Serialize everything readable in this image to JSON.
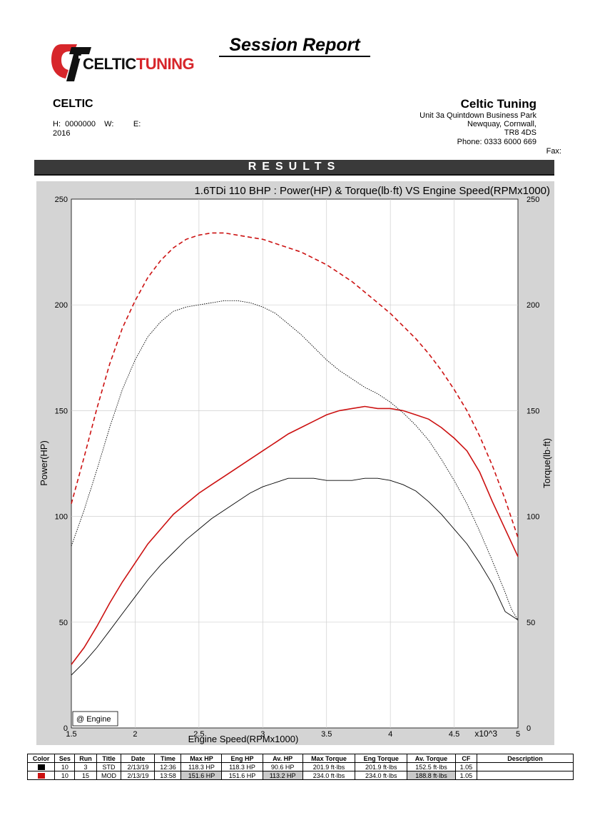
{
  "report_title": "Session Report",
  "logo": {
    "part1": "CELTIC",
    "part2": "TUNING"
  },
  "customer": {
    "name": "CELTIC",
    "line1": "H:  0000000    W:         E:",
    "line2": "2016"
  },
  "company": {
    "name": "Celtic Tuning",
    "address1": "Unit 3a Quintdown Business Park",
    "address2": "Newquay, Cornwall,",
    "postcode": "TR8 4DS",
    "phone": "Phone: 0333 6000 669",
    "fax": "Fax:"
  },
  "results_banner": "RESULTS",
  "chart_data": {
    "type": "line",
    "title": "1.6TDi 110 BHP : Power(HP) & Torque(lb·ft) VS Engine Speed(RPMx1000)",
    "xlabel": "Engine Speed(RPMx1000)",
    "ylabel_left": "Power(HP)",
    "ylabel_right": "Torque(lb·ft)",
    "x_multiplier": "x10^3",
    "xlim": [
      1.5,
      5
    ],
    "ylim": [
      0,
      250
    ],
    "x_ticks": [
      "1.5",
      "2",
      "2.5",
      "3",
      "3.5",
      "4",
      "4.5",
      "5"
    ],
    "y_ticks": [
      "0",
      "50",
      "100",
      "150",
      "200",
      "250"
    ],
    "grid": true,
    "legend_label": "@ Engine",
    "colors": {
      "std": "#000000",
      "mod": "#cc1111"
    },
    "series": [
      {
        "run": "MOD",
        "measure": "power",
        "style": "solid",
        "color": "#cc1111",
        "x": [
          1.5,
          1.6,
          1.7,
          1.8,
          1.9,
          2.0,
          2.1,
          2.2,
          2.3,
          2.4,
          2.5,
          2.6,
          2.7,
          2.8,
          2.9,
          3.0,
          3.1,
          3.2,
          3.3,
          3.4,
          3.5,
          3.6,
          3.7,
          3.8,
          3.9,
          4.0,
          4.1,
          4.2,
          4.3,
          4.4,
          4.5,
          4.6,
          4.7,
          4.8,
          4.9,
          5.0
        ],
        "values": [
          30,
          38,
          48,
          59,
          69,
          78,
          87,
          94,
          101,
          106,
          111,
          115,
          119,
          123,
          127,
          131,
          135,
          139,
          142,
          145,
          148,
          150,
          151,
          152,
          151,
          151,
          150,
          148,
          146,
          142,
          137,
          131,
          121,
          107,
          94,
          81
        ]
      },
      {
        "run": "STD",
        "measure": "power",
        "style": "solid",
        "color": "#000000",
        "x": [
          1.5,
          1.6,
          1.7,
          1.8,
          1.9,
          2.0,
          2.1,
          2.2,
          2.3,
          2.4,
          2.5,
          2.6,
          2.7,
          2.8,
          2.9,
          3.0,
          3.1,
          3.2,
          3.3,
          3.4,
          3.5,
          3.6,
          3.7,
          3.8,
          3.9,
          4.0,
          4.1,
          4.2,
          4.3,
          4.4,
          4.5,
          4.6,
          4.7,
          4.8,
          4.9,
          4.95,
          5.0
        ],
        "values": [
          25,
          31,
          38,
          46,
          54,
          62,
          70,
          77,
          83,
          89,
          94,
          99,
          103,
          107,
          111,
          114,
          116,
          118,
          118,
          118,
          117,
          117,
          117,
          118,
          118,
          117,
          115,
          112,
          107,
          101,
          94,
          87,
          78,
          68,
          55,
          53,
          51
        ]
      },
      {
        "run": "MOD",
        "measure": "torque",
        "style": "dashed",
        "color": "#cc1111",
        "x": [
          1.5,
          1.6,
          1.7,
          1.8,
          1.9,
          2.0,
          2.1,
          2.2,
          2.3,
          2.4,
          2.5,
          2.6,
          2.7,
          2.8,
          2.9,
          3.0,
          3.1,
          3.2,
          3.3,
          3.4,
          3.5,
          3.6,
          3.7,
          3.8,
          3.9,
          4.0,
          4.1,
          4.2,
          4.3,
          4.4,
          4.5,
          4.6,
          4.7,
          4.8,
          4.9,
          5.0
        ],
        "values": [
          106,
          128,
          151,
          172,
          189,
          202,
          213,
          221,
          227,
          231,
          233,
          234,
          234,
          233,
          232,
          231,
          229,
          227,
          225,
          222,
          219,
          215,
          211,
          206,
          201,
          196,
          190,
          184,
          177,
          169,
          160,
          150,
          138,
          124,
          108,
          90
        ]
      },
      {
        "run": "STD",
        "measure": "torque",
        "style": "dotted",
        "color": "#000000",
        "x": [
          1.5,
          1.6,
          1.7,
          1.8,
          1.9,
          2.0,
          2.1,
          2.2,
          2.3,
          2.4,
          2.5,
          2.6,
          2.7,
          2.8,
          2.9,
          3.0,
          3.1,
          3.2,
          3.3,
          3.4,
          3.5,
          3.6,
          3.7,
          3.8,
          3.9,
          4.0,
          4.1,
          4.2,
          4.3,
          4.4,
          4.5,
          4.6,
          4.7,
          4.8,
          4.9,
          4.95,
          5.0
        ],
        "values": [
          86,
          103,
          122,
          142,
          160,
          174,
          185,
          192,
          197,
          199,
          200,
          201,
          202,
          202,
          201,
          199,
          196,
          191,
          186,
          180,
          174,
          169,
          165,
          161,
          158,
          154,
          149,
          143,
          136,
          127,
          117,
          106,
          93,
          79,
          64,
          56,
          51
        ]
      }
    ]
  },
  "table": {
    "headers": [
      "Color",
      "Ses",
      "Run",
      "Title",
      "Date",
      "Time",
      "Max HP",
      "Eng HP",
      "Av. HP",
      "Max Torque",
      "Eng Torque",
      "Av. Torque",
      "CF",
      "Description"
    ],
    "rows": [
      {
        "color": "#000000",
        "ses": "10",
        "run": "3",
        "title": "STD",
        "date": "2/13/19",
        "time": "12:36",
        "max_hp": "118.3 HP",
        "eng_hp": "118.3 HP",
        "av_hp": "90.6 HP",
        "max_torque": "201.9 ft·lbs",
        "eng_torque": "201.9 ft·lbs",
        "av_torque": "152.5 ft·lbs",
        "cf": "1.05",
        "description": ""
      },
      {
        "color": "#cc1111",
        "ses": "10",
        "run": "15",
        "title": "MOD",
        "date": "2/13/19",
        "time": "13:58",
        "max_hp": "151.6 HP",
        "eng_hp": "151.6 HP",
        "av_hp": "113.2 HP",
        "max_torque": "234.0 ft·lbs",
        "eng_torque": "234.0 ft·lbs",
        "av_torque": "188.8 ft·lbs",
        "cf": "1.05",
        "description": ""
      }
    ]
  }
}
